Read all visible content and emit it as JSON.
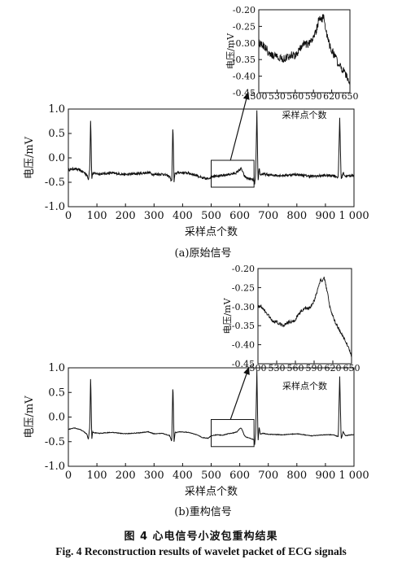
{
  "figure": {
    "caption_cn": "图 4    心电信号小波包重构结果",
    "caption_en": "Fig. 4    Reconstruction results of wavelet packet of ECG signals"
  },
  "chart_data": [
    {
      "id": "original-main",
      "type": "line",
      "subtitle": "(a)原始信号",
      "xlabel": "采样点个数",
      "ylabel": "电压/mV",
      "xlim": [
        0,
        1000
      ],
      "ylim": [
        -1.0,
        1.0
      ],
      "xticks": [
        0,
        100,
        200,
        300,
        400,
        500,
        600,
        700,
        800,
        900,
        1000
      ],
      "xtick_labels": [
        "0",
        "100",
        "200",
        "300",
        "400",
        "500",
        "600",
        "700",
        "800",
        "900",
        "1 000"
      ],
      "yticks": [
        1.0,
        0.5,
        0.0,
        -0.5,
        -1.0
      ],
      "ytick_labels": [
        "1.0",
        "0.5",
        "0.0",
        "-0.5",
        "-1.0"
      ],
      "noisy": true,
      "zoom_box": {
        "x": [
          500,
          650
        ],
        "y": [
          -0.6,
          -0.05
        ]
      },
      "series": [
        {
          "x": [
            0,
            20,
            40,
            55,
            65,
            70,
            75,
            78,
            82,
            85,
            88,
            95,
            110,
            150,
            200,
            250,
            280,
            300,
            330,
            355,
            362,
            366,
            370,
            374,
            378,
            385,
            420,
            450,
            470,
            490,
            500,
            520,
            540,
            560,
            580,
            590,
            600,
            605,
            610,
            615,
            620,
            630,
            640,
            650,
            652,
            656,
            660,
            664,
            668,
            672,
            680,
            700,
            750,
            800,
            850,
            900,
            930,
            945,
            950,
            955,
            962,
            970,
            990,
            1000
          ],
          "y": [
            -0.25,
            -0.22,
            -0.25,
            -0.3,
            -0.35,
            -0.45,
            -0.2,
            0.85,
            -0.45,
            -0.3,
            -0.32,
            -0.32,
            -0.33,
            -0.31,
            -0.34,
            -0.32,
            -0.3,
            -0.34,
            -0.33,
            -0.38,
            -0.5,
            0.7,
            -0.5,
            -0.3,
            -0.32,
            -0.3,
            -0.31,
            -0.36,
            -0.42,
            -0.43,
            -0.38,
            -0.36,
            -0.37,
            -0.34,
            -0.32,
            -0.3,
            -0.24,
            -0.22,
            -0.28,
            -0.36,
            -0.4,
            -0.42,
            -0.44,
            -0.46,
            -0.58,
            -0.3,
            0.95,
            -0.5,
            -0.2,
            -0.35,
            -0.33,
            -0.35,
            -0.36,
            -0.34,
            -0.38,
            -0.36,
            -0.36,
            -0.4,
            0.82,
            -0.45,
            -0.3,
            -0.38,
            -0.36,
            -0.36
          ]
        }
      ]
    },
    {
      "id": "original-zoom",
      "type": "line",
      "xlabel": "采样点个数",
      "ylabel": "电压/mV",
      "xlim": [
        500,
        650
      ],
      "ylim": [
        -0.45,
        -0.2
      ],
      "xticks": [
        500,
        530,
        560,
        590,
        620,
        650
      ],
      "xtick_labels": [
        "500",
        "530",
        "560",
        "590",
        "620",
        "650"
      ],
      "yticks": [
        -0.2,
        -0.25,
        -0.3,
        -0.35,
        -0.4,
        -0.45
      ],
      "ytick_labels": [
        "-0.20",
        "-0.25",
        "-0.30",
        "-0.35",
        "-0.40",
        "-0.45"
      ],
      "noisy": true,
      "series": [
        {
          "x": [
            500,
            505,
            510,
            515,
            520,
            525,
            530,
            535,
            540,
            545,
            550,
            555,
            560,
            565,
            570,
            575,
            580,
            585,
            590,
            595,
            598,
            600,
            603,
            606,
            609,
            612,
            615,
            620,
            625,
            630,
            635,
            640,
            645,
            650
          ],
          "y": [
            -0.3,
            -0.305,
            -0.31,
            -0.325,
            -0.335,
            -0.34,
            -0.335,
            -0.345,
            -0.35,
            -0.345,
            -0.34,
            -0.335,
            -0.34,
            -0.325,
            -0.31,
            -0.3,
            -0.305,
            -0.3,
            -0.285,
            -0.26,
            -0.235,
            -0.225,
            -0.235,
            -0.22,
            -0.245,
            -0.275,
            -0.3,
            -0.32,
            -0.34,
            -0.36,
            -0.375,
            -0.385,
            -0.4,
            -0.43
          ]
        }
      ]
    },
    {
      "id": "reconstructed-main",
      "type": "line",
      "subtitle": "(b)重构信号",
      "xlabel": "采样点个数",
      "ylabel": "电压/mV",
      "xlim": [
        0,
        1000
      ],
      "ylim": [
        -1.0,
        1.0
      ],
      "xticks": [
        0,
        100,
        200,
        300,
        400,
        500,
        600,
        700,
        800,
        900,
        1000
      ],
      "xtick_labels": [
        "0",
        "100",
        "200",
        "300",
        "400",
        "500",
        "600",
        "700",
        "800",
        "900",
        "1 000"
      ],
      "yticks": [
        1.0,
        0.5,
        0.0,
        -0.5,
        -1.0
      ],
      "ytick_labels": [
        "1.0",
        "0.5",
        "0.0",
        "-0.5",
        "-1.0"
      ],
      "noisy": false,
      "zoom_box": {
        "x": [
          500,
          650
        ],
        "y": [
          -0.6,
          -0.05
        ]
      },
      "series": [
        {
          "x": [
            0,
            20,
            40,
            55,
            65,
            70,
            75,
            78,
            82,
            85,
            88,
            95,
            110,
            150,
            200,
            250,
            280,
            300,
            330,
            355,
            362,
            366,
            370,
            374,
            378,
            385,
            420,
            450,
            470,
            490,
            500,
            520,
            540,
            560,
            580,
            590,
            600,
            605,
            610,
            615,
            620,
            630,
            640,
            650,
            652,
            656,
            660,
            664,
            668,
            672,
            680,
            700,
            750,
            800,
            850,
            900,
            930,
            945,
            950,
            955,
            962,
            970,
            990,
            1000
          ],
          "y": [
            -0.25,
            -0.22,
            -0.25,
            -0.3,
            -0.35,
            -0.45,
            -0.2,
            0.85,
            -0.45,
            -0.3,
            -0.32,
            -0.32,
            -0.33,
            -0.31,
            -0.34,
            -0.32,
            -0.3,
            -0.34,
            -0.33,
            -0.38,
            -0.5,
            0.7,
            -0.5,
            -0.3,
            -0.32,
            -0.3,
            -0.31,
            -0.36,
            -0.42,
            -0.43,
            -0.38,
            -0.36,
            -0.37,
            -0.34,
            -0.32,
            -0.3,
            -0.24,
            -0.22,
            -0.28,
            -0.36,
            -0.4,
            -0.42,
            -0.44,
            -0.46,
            -0.58,
            -0.3,
            0.95,
            -0.5,
            -0.2,
            -0.35,
            -0.33,
            -0.35,
            -0.36,
            -0.34,
            -0.38,
            -0.36,
            -0.36,
            -0.4,
            0.82,
            -0.45,
            -0.3,
            -0.38,
            -0.36,
            -0.36
          ]
        }
      ]
    },
    {
      "id": "reconstructed-zoom",
      "type": "line",
      "xlabel": "采样点个数",
      "ylabel": "电压/mV",
      "xlim": [
        500,
        650
      ],
      "ylim": [
        -0.45,
        -0.2
      ],
      "xticks": [
        500,
        530,
        560,
        590,
        620,
        650
      ],
      "xtick_labels": [
        "500",
        "530",
        "560",
        "590",
        "620",
        "650"
      ],
      "yticks": [
        -0.2,
        -0.25,
        -0.3,
        -0.35,
        -0.4,
        -0.45
      ],
      "ytick_labels": [
        "-0.20",
        "-0.25",
        "-0.30",
        "-0.35",
        "-0.40",
        "-0.45"
      ],
      "noisy": false,
      "series": [
        {
          "x": [
            500,
            505,
            510,
            515,
            520,
            525,
            530,
            535,
            540,
            545,
            550,
            555,
            560,
            565,
            570,
            575,
            580,
            585,
            590,
            595,
            598,
            600,
            603,
            606,
            609,
            612,
            615,
            620,
            625,
            630,
            635,
            640,
            645,
            650
          ],
          "y": [
            -0.3,
            -0.3,
            -0.31,
            -0.32,
            -0.33,
            -0.34,
            -0.34,
            -0.345,
            -0.35,
            -0.345,
            -0.34,
            -0.34,
            -0.335,
            -0.32,
            -0.31,
            -0.305,
            -0.305,
            -0.3,
            -0.285,
            -0.26,
            -0.24,
            -0.23,
            -0.235,
            -0.225,
            -0.245,
            -0.27,
            -0.3,
            -0.325,
            -0.345,
            -0.36,
            -0.375,
            -0.39,
            -0.405,
            -0.43
          ]
        }
      ]
    }
  ]
}
